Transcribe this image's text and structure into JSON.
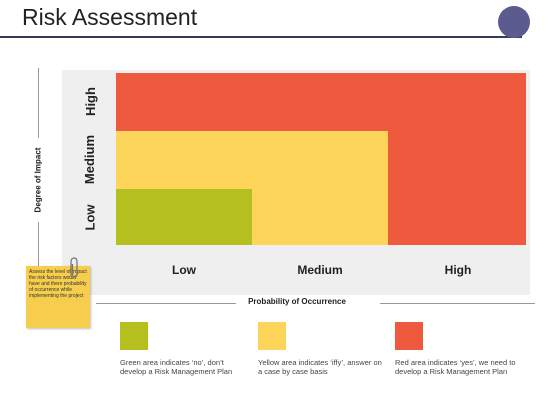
{
  "title": "Risk Assessment",
  "colors": {
    "high": "#ef5a3e",
    "medium": "#fcd55a",
    "low": "#b5c01e",
    "accent": "#5b5b8f"
  },
  "y_axis_label": "Degree of Impact",
  "x_axis_label": "Probability of Occurrence",
  "rows": [
    "High",
    "Medium",
    "Low"
  ],
  "columns": [
    "Low",
    "Medium",
    "High"
  ],
  "matrix": [
    [
      "high",
      "high",
      "high"
    ],
    [
      "medium",
      "medium",
      "high"
    ],
    [
      "low",
      "medium",
      "high"
    ]
  ],
  "note": "Assess the level of impact the risk factors would have and there probability of occurrence while implementing the project",
  "legend": [
    {
      "color": "low",
      "text": "Green area indicates ‘no’, don’t develop a Risk Management Plan"
    },
    {
      "color": "medium",
      "text": "Yellow area indicates ‘iffy’, answer on a case by case basis"
    },
    {
      "color": "high",
      "text": "Red area indicates ‘yes’, we need to develop a Risk Management Plan"
    }
  ]
}
